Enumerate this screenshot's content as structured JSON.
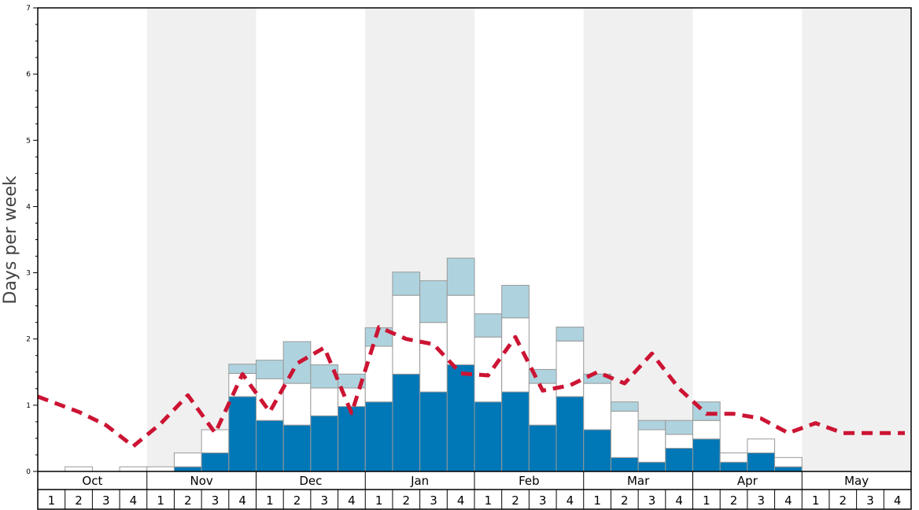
{
  "chart_data": {
    "type": "bar",
    "ylabel": "Days per week",
    "ylim": [
      0,
      7
    ],
    "yticks": [
      "0",
      "1",
      "2",
      "3",
      "4",
      "5",
      "6",
      "7"
    ],
    "months": [
      "Oct",
      "Nov",
      "Dec",
      "Jan",
      "Feb",
      "Mar",
      "Apr",
      "May"
    ],
    "week_labels": [
      "1",
      "2",
      "3",
      "4"
    ],
    "stacked": true,
    "series": [
      {
        "color": "#0077b6",
        "values": [
          0,
          0,
          0,
          0,
          0,
          0.07,
          0.28,
          1.13,
          0.77,
          0.7,
          0.84,
          0.98,
          1.05,
          1.47,
          1.2,
          1.61,
          1.05,
          1.2,
          0.7,
          1.13,
          0.63,
          0.21,
          0.14,
          0.35,
          0.49,
          0.14,
          0.28,
          0.07,
          0,
          0,
          0,
          0
        ]
      },
      {
        "color": "#ffffff",
        "values": [
          0,
          0.07,
          0,
          0.07,
          0.07,
          0.21,
          0.35,
          0.35,
          0.63,
          0.63,
          0.42,
          0.28,
          0.84,
          1.19,
          1.05,
          1.05,
          0.98,
          1.12,
          0.63,
          0.84,
          0.7,
          0.7,
          0.49,
          0.21,
          0.28,
          0.14,
          0.21,
          0.14,
          0,
          0,
          0,
          0
        ]
      },
      {
        "color": "#aed3df",
        "values": [
          0,
          0,
          0,
          0,
          0,
          0,
          0,
          0.14,
          0.28,
          0.63,
          0.35,
          0.21,
          0.28,
          0.35,
          0.63,
          0.56,
          0.35,
          0.49,
          0.21,
          0.21,
          0.14,
          0.14,
          0.14,
          0.21,
          0.28,
          0,
          0,
          0,
          0,
          0,
          0,
          0
        ]
      }
    ],
    "line": {
      "color": "#cc1433",
      "style": "dashed",
      "values": [
        1.13,
        0.9,
        0.7,
        0.38,
        0.72,
        1.15,
        0.58,
        1.47,
        0.9,
        1.63,
        1.87,
        0.88,
        2.18,
        2.0,
        1.92,
        1.48,
        1.45,
        2.03,
        1.22,
        1.3,
        1.5,
        1.33,
        1.78,
        1.25,
        0.87,
        0.87,
        0.8,
        0.58,
        0.73,
        0.58,
        0.58,
        0.58
      ]
    },
    "alternate_month_shading": "#f0f0f0",
    "grid": false
  }
}
